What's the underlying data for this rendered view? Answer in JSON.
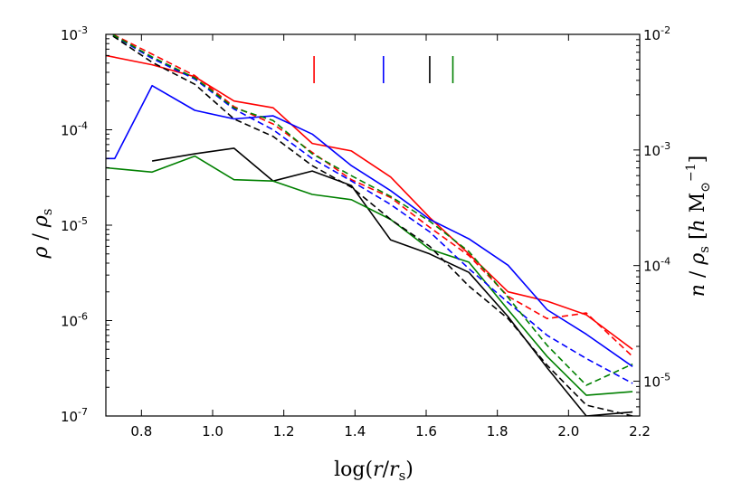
{
  "chart_data": {
    "type": "line",
    "xlabel_parts": [
      "log(",
      "r",
      "/",
      "r",
      "s",
      ")"
    ],
    "ylabel_left_parts": [
      "ρ",
      " / ",
      "ρ",
      "s"
    ],
    "ylabel_right_parts": [
      "n",
      " / ",
      "ρ",
      "s",
      " [",
      "h",
      " M",
      "⊙",
      "−1",
      "]"
    ],
    "xlim": [
      0.7,
      2.2
    ],
    "ylim_left": [
      1e-07,
      0.001
    ],
    "ylim_right": [
      5e-06,
      0.01
    ],
    "x_ticks": [
      {
        "value": 0.8,
        "label": "0.8"
      },
      {
        "value": 1.0,
        "label": "1.0"
      },
      {
        "value": 1.2,
        "label": "1.2"
      },
      {
        "value": 1.4,
        "label": "1.4"
      },
      {
        "value": 1.6,
        "label": "1.6"
      },
      {
        "value": 1.8,
        "label": "1.8"
      },
      {
        "value": 2.0,
        "label": "2.0"
      },
      {
        "value": 2.2,
        "label": "2.2"
      }
    ],
    "y_left_ticks": [
      {
        "value": 0.001,
        "base": "10",
        "exp": "-3"
      },
      {
        "value": 0.0001,
        "base": "10",
        "exp": "-4"
      },
      {
        "value": 1e-05,
        "base": "10",
        "exp": "-5"
      },
      {
        "value": 1e-06,
        "base": "10",
        "exp": "-6"
      },
      {
        "value": 1e-07,
        "base": "10",
        "exp": "-7"
      }
    ],
    "y_right_ticks": [
      {
        "value": 0.01,
        "base": "10",
        "exp": "-2"
      },
      {
        "value": 0.001,
        "base": "10",
        "exp": "-3"
      },
      {
        "value": 0.0001,
        "base": "10",
        "exp": "-4"
      },
      {
        "value": 1e-05,
        "base": "10",
        "exp": "-5"
      }
    ],
    "markers": [
      {
        "x": 1.285,
        "color": "#ff0000"
      },
      {
        "x": 1.48,
        "color": "#0000ff"
      },
      {
        "x": 1.61,
        "color": "#000000"
      },
      {
        "x": 1.675,
        "color": "#008000"
      }
    ],
    "series": [
      {
        "name": "red density",
        "color": "#ff0000",
        "style": "solid",
        "axis": "left",
        "x": [
          0.7,
          0.83,
          0.95,
          1.06,
          1.17,
          1.28,
          1.39,
          1.5,
          1.61,
          1.72,
          1.83,
          1.94,
          2.05,
          2.18
        ],
        "y": [
          0.0006,
          0.00048,
          0.00036,
          0.0002,
          0.00017,
          7.2e-05,
          6e-05,
          3.2e-05,
          1.2e-05,
          5e-06,
          2e-06,
          1.6e-06,
          1.15e-06,
          5e-07
        ]
      },
      {
        "name": "blue density",
        "color": "#0000ff",
        "style": "solid",
        "axis": "left",
        "x": [
          0.7,
          0.725,
          0.83,
          0.95,
          1.06,
          1.17,
          1.28,
          1.39,
          1.5,
          1.61,
          1.72,
          1.83,
          1.94,
          2.05,
          2.18
        ],
        "y": [
          5e-05,
          5e-05,
          0.00029,
          0.00016,
          0.00013,
          0.00014,
          9e-05,
          4.2e-05,
          2.3e-05,
          1.15e-05,
          7.2e-06,
          3.8e-06,
          1.3e-06,
          7.2e-07,
          3.3e-07
        ]
      },
      {
        "name": "black density",
        "color": "#000000",
        "style": "solid",
        "axis": "left",
        "x": [
          0.83,
          0.95,
          1.06,
          1.17,
          1.28,
          1.39,
          1.5,
          1.61,
          1.72,
          1.83,
          1.94,
          2.05,
          2.18
        ],
        "y": [
          4.7e-05,
          5.6e-05,
          6.4e-05,
          2.9e-05,
          3.7e-05,
          2.6e-05,
          7e-06,
          5e-06,
          3.2e-06,
          1.1e-06,
          3.2e-07,
          1e-07,
          1.1e-07
        ]
      },
      {
        "name": "green density",
        "color": "#008000",
        "style": "solid",
        "axis": "left",
        "x": [
          0.7,
          0.83,
          0.95,
          1.06,
          1.17,
          1.28,
          1.39,
          1.5,
          1.61,
          1.72,
          1.83,
          1.94,
          2.05,
          2.18
        ],
        "y": [
          4e-05,
          3.6e-05,
          5.3e-05,
          3e-05,
          2.9e-05,
          2.1e-05,
          1.85e-05,
          1.15e-05,
          5.6e-06,
          4.1e-06,
          1.3e-06,
          4.2e-07,
          1.65e-07,
          1.8e-07
        ]
      },
      {
        "name": "red model",
        "color": "#ff0000",
        "style": "dashed",
        "axis": "left",
        "x": [
          0.72,
          0.83,
          0.95,
          1.06,
          1.17,
          1.28,
          1.39,
          1.5,
          1.61,
          1.72,
          1.83,
          1.94,
          2.05,
          2.18
        ],
        "y": [
          0.001,
          0.00062,
          0.00037,
          0.000175,
          0.000115,
          5.8e-05,
          3e-05,
          1.95e-05,
          9.5e-06,
          4.8e-06,
          1.8e-06,
          1.05e-06,
          1.2e-06,
          4.2e-07
        ]
      },
      {
        "name": "blue model",
        "color": "#0000ff",
        "style": "dashed",
        "axis": "left",
        "x": [
          0.72,
          0.83,
          0.95,
          1.06,
          1.17,
          1.28,
          1.39,
          1.5,
          1.61,
          1.72,
          1.83,
          1.94,
          2.05,
          2.18
        ],
        "y": [
          0.00098,
          0.00056,
          0.00034,
          0.000165,
          0.0001,
          5e-05,
          2.9e-05,
          1.65e-05,
          8.5e-06,
          3.5e-06,
          1.55e-06,
          7e-07,
          4e-07,
          2.2e-07
        ]
      },
      {
        "name": "black model",
        "color": "#000000",
        "style": "dashed",
        "axis": "left",
        "x": [
          0.72,
          0.83,
          0.95,
          1.06,
          1.17,
          1.28,
          1.39,
          1.5,
          1.61,
          1.72,
          1.83,
          1.94,
          2.05,
          2.18
        ],
        "y": [
          0.00096,
          0.00051,
          0.0003,
          0.00013,
          8.5e-05,
          4.2e-05,
          2.5e-05,
          1.15e-05,
          6e-06,
          2.3e-06,
          1.05e-06,
          3.4e-07,
          1.3e-07,
          1e-07
        ]
      },
      {
        "name": "green model",
        "color": "#008000",
        "style": "dashed",
        "axis": "left",
        "x": [
          0.72,
          0.83,
          0.95,
          1.06,
          1.17,
          1.28,
          1.39,
          1.5,
          1.61,
          1.72,
          1.83,
          1.94,
          2.05,
          2.18
        ],
        "y": [
          0.00099,
          0.00058,
          0.00035,
          0.00017,
          0.000125,
          5.6e-05,
          3.3e-05,
          2e-05,
          1.1e-05,
          5.3e-06,
          1.75e-06,
          5.5e-07,
          2.1e-07,
          3.5e-07
        ]
      }
    ]
  }
}
